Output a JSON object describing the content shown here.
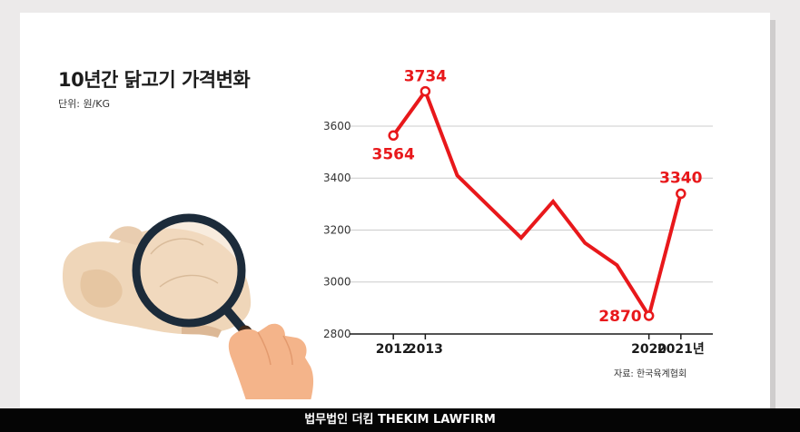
{
  "header": {
    "title": "10년간 닭고기 가격변화",
    "unit": "단위: 원/KG"
  },
  "source": "자료: 한국육계협회",
  "footer": "법무법인 더킴 THEKIM LAWFIRM",
  "colors": {
    "line": "#e8181b",
    "axis": "#1a1a1a",
    "grid": "#cccccc",
    "label": "#e8181b"
  },
  "chart_data": {
    "type": "line",
    "title": "10년간 닭고기 가격변화",
    "ylabel": "원/KG",
    "ylim": [
      2800,
      3750
    ],
    "xlim": [
      2011,
      2022
    ],
    "yticks": [
      2800,
      3000,
      3200,
      3400,
      3600
    ],
    "xticks": [
      {
        "x": 2012,
        "label": "2012"
      },
      {
        "x": 2013,
        "label": "2013"
      },
      {
        "x": 2020,
        "label": "2020"
      },
      {
        "x": 2021,
        "label": "2021년"
      }
    ],
    "grid": true,
    "series": [
      {
        "x": [
          2012,
          2013,
          2014,
          2015,
          2016,
          2017,
          2018,
          2019,
          2020,
          2021
        ],
        "values": [
          3564,
          3734,
          3410,
          3290,
          3170,
          3310,
          3150,
          3065,
          2870,
          3340
        ]
      }
    ],
    "labeled_points": [
      {
        "x": 2012,
        "value": 3564,
        "label": "3564"
      },
      {
        "x": 2013,
        "value": 3734,
        "label": "3734"
      },
      {
        "x": 2020,
        "value": 2870,
        "label": "2870"
      },
      {
        "x": 2021,
        "value": 3340,
        "label": "3340"
      }
    ]
  }
}
